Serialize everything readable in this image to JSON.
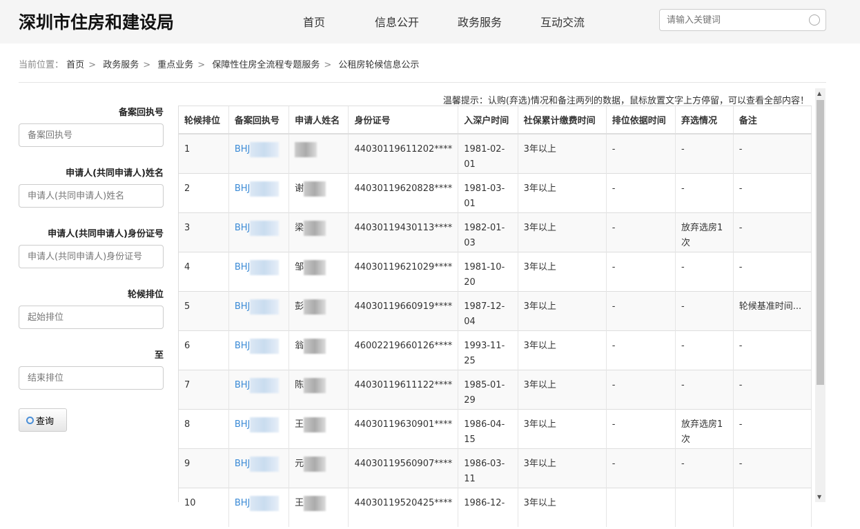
{
  "header": {
    "logo": "深圳市住房和建设局",
    "nav": [
      "首页",
      "信息公开",
      "政务服务",
      "互动交流"
    ],
    "search_placeholder": "请输入关键词"
  },
  "breadcrumb": {
    "label": "当前位置：",
    "items": [
      "首页",
      "政务服务",
      "重点业务",
      "保障性住房全流程专题服务",
      "公租房轮候信息公示"
    ]
  },
  "form": {
    "fields": [
      {
        "label": "备案回执号",
        "placeholder": "备案回执号"
      },
      {
        "label": "申请人(共同申请人)姓名",
        "placeholder": "申请人(共同申请人)姓名"
      },
      {
        "label": "申请人(共同申请人)身份证号",
        "placeholder": "申请人(共同申请人)身份证号"
      },
      {
        "label": "轮候排位",
        "placeholder": "起始排位"
      },
      {
        "label": "至",
        "placeholder": "结束排位"
      }
    ],
    "query_button": "查询"
  },
  "tip": "温馨提示：认购(弃选)情况和备注两列的数据，鼠标放置文字上方停留，可以查看全部内容！",
  "table": {
    "headers": [
      "轮候排位",
      "备案回执号",
      "申请人姓名",
      "身份证号",
      "入深户时间",
      "社保累计缴费时间",
      "排位依据时间",
      "弃选情况",
      "备注"
    ],
    "rows": [
      [
        "1",
        "BHJ",
        "",
        "44030119611202****",
        "1981-02-01",
        "3年以上",
        "-",
        "-",
        "-"
      ],
      [
        "2",
        "BHJ",
        "谢",
        "44030119620828****",
        "1981-03-01",
        "3年以上",
        "-",
        "-",
        "-"
      ],
      [
        "3",
        "BHJ",
        "梁",
        "44030119430113****",
        "1982-01-03",
        "3年以上",
        "-",
        "放弃选房1次",
        "-"
      ],
      [
        "4",
        "BHJ",
        "邹",
        "44030119621029****",
        "1981-10-20",
        "3年以上",
        "-",
        "-",
        "-"
      ],
      [
        "5",
        "BHJ",
        "彭",
        "44030119660919****",
        "1987-12-04",
        "3年以上",
        "-",
        "-",
        "轮候基准时间..."
      ],
      [
        "6",
        "BHJ",
        "翁",
        "46002219660126****",
        "1993-11-25",
        "3年以上",
        "-",
        "-",
        "-"
      ],
      [
        "7",
        "BHJ",
        "陈",
        "44030119611122****",
        "1985-01-29",
        "3年以上",
        "-",
        "-",
        "-"
      ],
      [
        "8",
        "BHJ",
        "王",
        "44030119630901****",
        "1986-04-15",
        "3年以上",
        "-",
        "放弃选房1次",
        "-"
      ],
      [
        "9",
        "BHJ",
        "元",
        "44030119560907****",
        "1986-03-11",
        "3年以上",
        "-",
        "-",
        "-"
      ],
      [
        "10",
        "BHJ",
        "王",
        "44030119520425****",
        "1986-12-",
        "3年以上",
        "",
        "",
        ""
      ]
    ]
  }
}
